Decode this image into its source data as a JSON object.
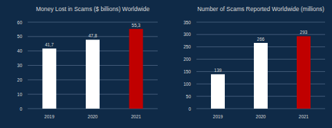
{
  "chart_data": [
    {
      "type": "bar",
      "title": "Money Lost in Scams ($ billions) Worldwide",
      "categories": [
        "2019",
        "2020",
        "2021"
      ],
      "values": [
        41.7,
        47.8,
        55.3
      ],
      "value_labels": [
        "41,7",
        "47,8",
        "55,3"
      ],
      "colors": [
        "#ffffff",
        "#ffffff",
        "#c00000"
      ],
      "ylim": [
        0,
        60
      ],
      "yticks": [
        0,
        10,
        20,
        30,
        40,
        50,
        60
      ],
      "grid": true,
      "data_labels": true
    },
    {
      "type": "bar",
      "title": "Number of Scams Reported Worldwide (millions)",
      "categories": [
        "2019",
        "2020",
        "2021"
      ],
      "values": [
        139,
        266,
        293
      ],
      "colors": [
        "#ffffff",
        "#ffffff",
        "#c00000"
      ],
      "ylim": [
        0,
        350
      ],
      "yticks": [
        0,
        50,
        100,
        150,
        200,
        250,
        300,
        350
      ],
      "grid": true,
      "data_labels": true
    }
  ]
}
